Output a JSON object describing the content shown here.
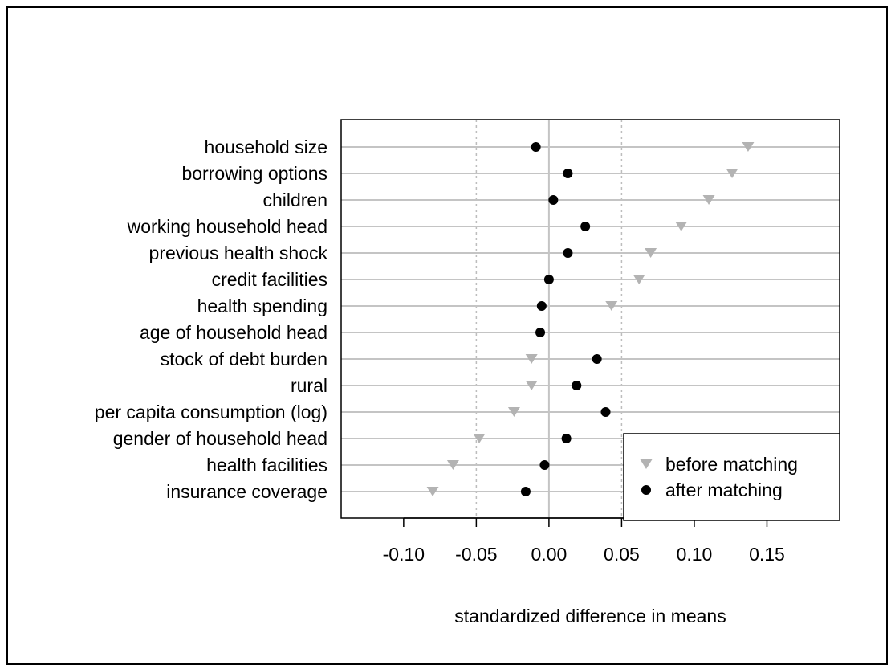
{
  "chart_data": {
    "type": "scatter",
    "xlabel": "standardized difference in means",
    "xlim": [
      -0.143,
      0.2
    ],
    "x_ticks": [
      -0.1,
      -0.05,
      0.0,
      0.05,
      0.1,
      0.15
    ],
    "x_tick_labels": [
      "-0.10",
      "-0.05",
      "0.00",
      "0.05",
      "0.10",
      "0.15"
    ],
    "reference_lines": [
      -0.05,
      0.05
    ],
    "zero_line": 0,
    "categories": [
      "household size",
      "borrowing options",
      "children",
      "working household head",
      "previous health shock",
      "credit facilities",
      "health spending",
      "age of household head",
      "stock of debt burden",
      "rural",
      "per capita consumption (log)",
      "gender of household head",
      "health facilities",
      "insurance coverage"
    ],
    "series": [
      {
        "name": "before matching",
        "marker": "triangle-down",
        "color": "#b3b3b3",
        "values": [
          0.137,
          0.126,
          0.11,
          0.091,
          0.07,
          0.062,
          0.043,
          null,
          -0.012,
          -0.012,
          -0.024,
          -0.048,
          -0.066,
          -0.08
        ]
      },
      {
        "name": "after matching",
        "marker": "circle",
        "color": "#000000",
        "values": [
          -0.009,
          0.013,
          0.003,
          0.025,
          0.013,
          0.0,
          -0.005,
          -0.006,
          0.033,
          0.019,
          0.039,
          0.012,
          -0.003,
          -0.016
        ]
      }
    ],
    "legend": {
      "placement": "bottom-right"
    },
    "grid": "horizontal"
  }
}
